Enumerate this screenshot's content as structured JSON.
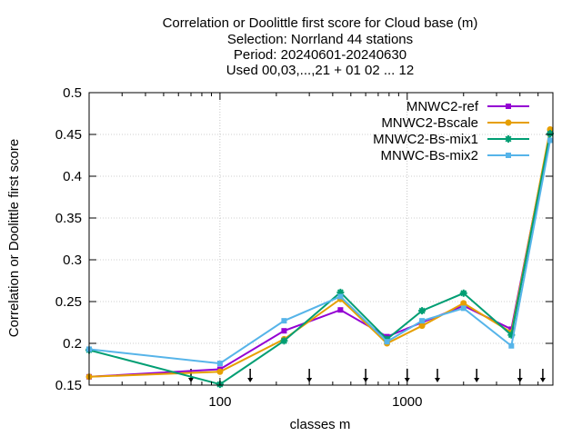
{
  "chart_data": {
    "type": "line",
    "title_lines": [
      "Correlation or Doolittle first score  for Cloud base (m)",
      "Selection: Norrland     44 stations",
      "Period: 20240601-20240630",
      "Used 00,03,...,21 + 01 02 ... 12"
    ],
    "xlabel": "classes m",
    "ylabel": "Correlation or Doolittle first score",
    "x_scale": "log",
    "xlim": [
      20,
      6000
    ],
    "ylim": [
      0.15,
      0.5
    ],
    "x_ticks": [
      {
        "value": 100,
        "label": "100"
      },
      {
        "value": 1000,
        "label": "1000"
      }
    ],
    "y_ticks": [
      {
        "value": 0.15,
        "label": "0.15"
      },
      {
        "value": 0.2,
        "label": "0.2"
      },
      {
        "value": 0.25,
        "label": "0.25"
      },
      {
        "value": 0.3,
        "label": "0.3"
      },
      {
        "value": 0.35,
        "label": "0.35"
      },
      {
        "value": 0.4,
        "label": "0.4"
      },
      {
        "value": 0.45,
        "label": "0.45"
      },
      {
        "value": 0.5,
        "label": "0.5"
      }
    ],
    "grid": true,
    "legend_position": "top-right",
    "x": [
      20,
      100,
      220,
      440,
      780,
      1200,
      2000,
      3600,
      5800
    ],
    "series": [
      {
        "name": "MNWC2-ref",
        "color": "#9400d3",
        "marker": "filled-square",
        "values": [
          0.16,
          0.169,
          0.215,
          0.24,
          0.208,
          0.225,
          0.245,
          0.217,
          0.453
        ]
      },
      {
        "name": "MNWC2-Bscale",
        "color": "#e69f00",
        "marker": "filled-circle",
        "values": [
          0.16,
          0.166,
          0.205,
          0.253,
          0.2,
          0.221,
          0.248,
          0.213,
          0.456
        ]
      },
      {
        "name": "MNWC2-Bs-mix1",
        "color": "#009e73",
        "marker": "star",
        "values": [
          0.192,
          0.151,
          0.203,
          0.261,
          0.205,
          0.239,
          0.26,
          0.21,
          0.451
        ]
      },
      {
        "name": "MNWC-Bs-mix2",
        "color": "#56b4e9",
        "marker": "filled-square",
        "values": [
          0.193,
          0.176,
          0.227,
          0.256,
          0.202,
          0.227,
          0.242,
          0.197,
          0.443
        ]
      }
    ],
    "bottom_arrows_x": [
      70,
      145,
      300,
      600,
      1000,
      1450,
      2350,
      4000,
      5300
    ]
  }
}
